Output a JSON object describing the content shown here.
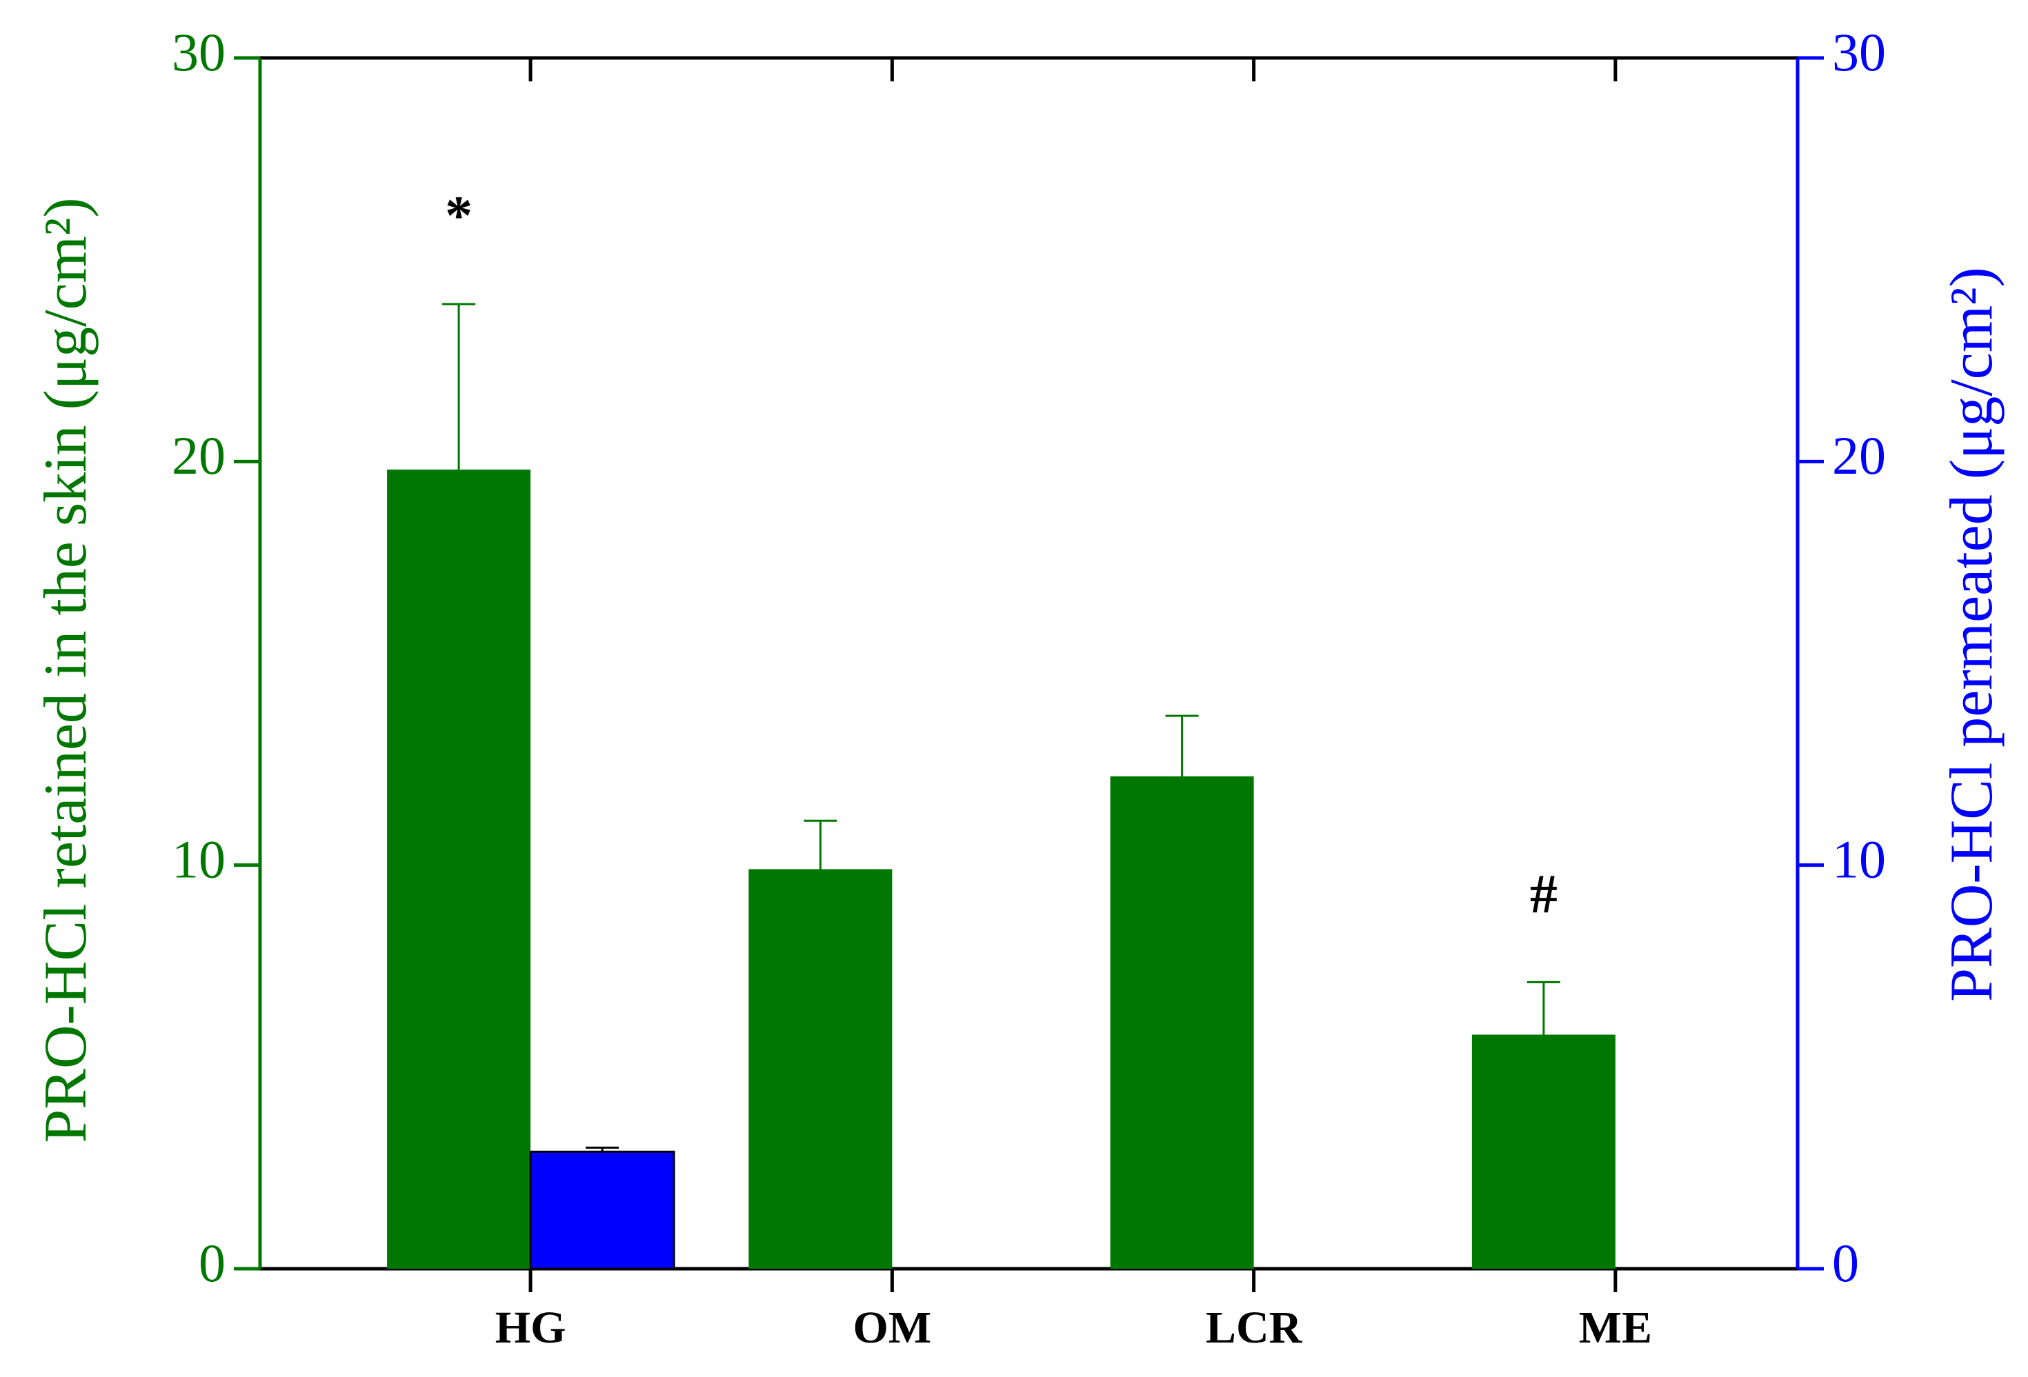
{
  "chart_data": {
    "type": "bar",
    "categories": [
      "HG",
      "OM",
      "LCR",
      "ME"
    ],
    "series": [
      {
        "color": "#007700",
        "values": [
          19.8,
          9.9,
          12.2,
          5.8
        ],
        "errors": [
          4.1,
          1.2,
          1.5,
          1.3
        ]
      },
      {
        "color": "#0000ff",
        "axis": "y2",
        "values": [
          2.9,
          null,
          null,
          null
        ],
        "errors": [
          0.1,
          null,
          null,
          null
        ]
      }
    ],
    "ylabel": "PRO-HCl retained in the skin (μg/cm²)",
    "y2label": "PRO-HCl permeated (μg/cm²)",
    "ylim": [
      0,
      30
    ],
    "yticks": [
      0,
      10,
      20,
      30
    ],
    "y2lim": [
      0,
      30
    ],
    "y2ticks": [
      0,
      10,
      20,
      30
    ],
    "annotations": [
      {
        "text": "*",
        "category": "HG"
      },
      {
        "text": "#",
        "category": "ME"
      }
    ]
  }
}
